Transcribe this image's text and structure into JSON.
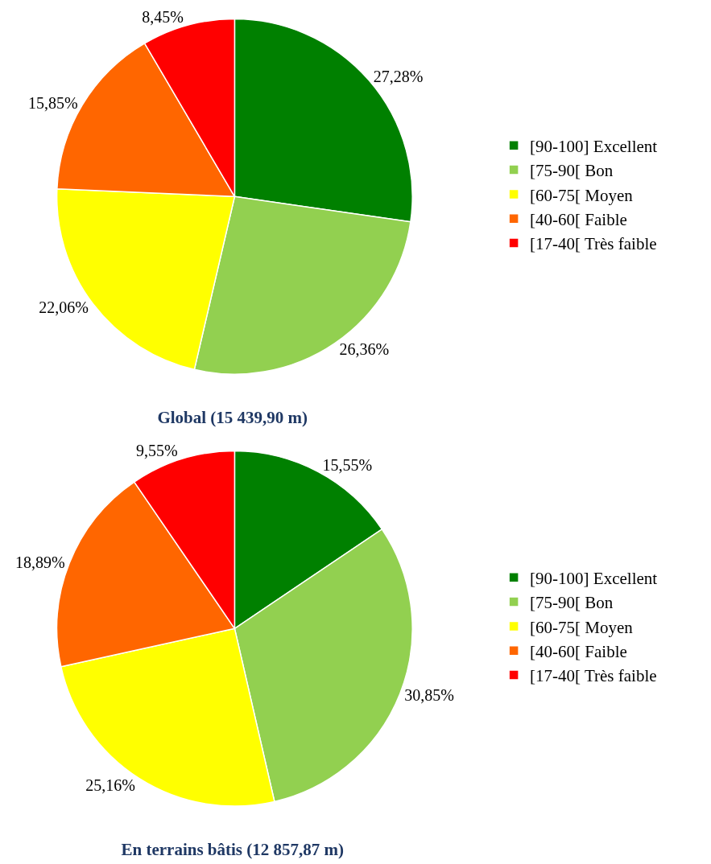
{
  "chart_data": [
    {
      "type": "pie",
      "title": "Global (15 439,90 m)",
      "categories": [
        "[90-100] Excellent",
        "[75-90[ Bon",
        "[60-75[ Moyen",
        "[40-60[ Faible",
        "[17-40[ Très faible"
      ],
      "values": [
        27.28,
        26.36,
        22.06,
        15.85,
        8.45
      ],
      "value_labels": [
        "27,28%",
        "26,36%",
        "22,06%",
        "15,85%",
        "8,45%"
      ],
      "colors": [
        "#008000",
        "#92d050",
        "#ffff00",
        "#ff6600",
        "#ff0000"
      ],
      "legend": "right"
    },
    {
      "type": "pie",
      "title": "En terrains bâtis (12 857,87 m)",
      "categories": [
        "[90-100] Excellent",
        "[75-90[ Bon",
        "[60-75[ Moyen",
        "[40-60[ Faible",
        "[17-40[ Très faible"
      ],
      "values": [
        15.55,
        30.85,
        25.16,
        18.89,
        9.55
      ],
      "value_labels": [
        "15,55%",
        "30,85%",
        "25,16%",
        "18,89%",
        "9,55%"
      ],
      "colors": [
        "#008000",
        "#92d050",
        "#ffff00",
        "#ff6600",
        "#ff0000"
      ],
      "legend": "right"
    }
  ]
}
